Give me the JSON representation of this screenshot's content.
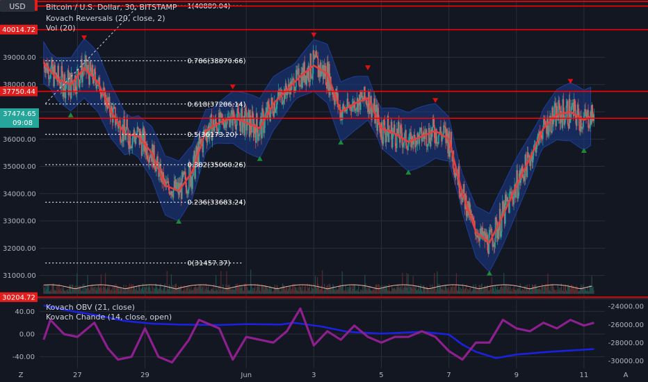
{
  "header": {
    "currency_button": "USD",
    "symbol_title": "Bitcoin / U.S. Dollar, 30, BITSTAMP",
    "indicator_reversals": "Kovach Reversals (20, close, 2)",
    "indicator_vol": "Vol (20)",
    "indicator_obv": "Kovach OBV (21, close)",
    "indicator_chande": "Kovach Chande (14, close, open)"
  },
  "footer": {
    "left_icon_label": "Z",
    "right_icon_label": "A"
  },
  "colors": {
    "background": "#131722",
    "grid": "#2a2e39",
    "candle_up": "#26a69a",
    "candle_down": "#ef5350",
    "basis": "#e0403f",
    "band_fill": "#1b3a8c",
    "level_line": "#ff0000",
    "obv": "#1a22e0",
    "chande": "#8e1f8e",
    "arrow_down": "#e01010",
    "arrow_up": "#1b8a3a",
    "price_badge": "#26a69a"
  },
  "chart_data": [
    {
      "type": "candlestick",
      "title": "Bitcoin / U.S. Dollar, 30, BITSTAMP",
      "x_tick_labels": [
        "27",
        "29",
        "Jun",
        "3",
        "5",
        "7",
        "9",
        "11"
      ],
      "y_tick_labels": [
        "39000.00",
        "38000.00",
        "36000.00",
        "35000.00",
        "34000.00",
        "33000.00",
        "32000.00",
        "31000.00"
      ],
      "ylim": [
        30200,
        41100
      ],
      "grid": true,
      "current_price": "37474.65",
      "countdown": "09:08",
      "horizontal_levels": [
        "41048.05",
        "40879.97",
        "40014.72",
        "37750.44",
        "36764.44",
        "30204.72"
      ],
      "fibonacci_levels": [
        {
          "label": "1(40889.04)",
          "value": 40889.04
        },
        {
          "label": "0.786(38870.66)",
          "value": 38870.66
        },
        {
          "label": "0.618(37286.14)",
          "value": 37286.14
        },
        {
          "label": "0.5(36173.20)",
          "value": 36173.2
        },
        {
          "label": "0.382(35060.26)",
          "value": 35060.26
        },
        {
          "label": "0.236(33683.24)",
          "value": 33683.24
        },
        {
          "label": "0(31457.37)",
          "value": 31457.37
        }
      ],
      "basis_trend": [
        {
          "day": 26.0,
          "price": 38800
        },
        {
          "day": 26.4,
          "price": 38200
        },
        {
          "day": 26.8,
          "price": 38000
        },
        {
          "day": 27.2,
          "price": 38600
        },
        {
          "day": 27.6,
          "price": 38100
        },
        {
          "day": 28.0,
          "price": 37000
        },
        {
          "day": 28.4,
          "price": 36200
        },
        {
          "day": 28.8,
          "price": 36100
        },
        {
          "day": 29.2,
          "price": 35500
        },
        {
          "day": 29.6,
          "price": 34300
        },
        {
          "day": 30.0,
          "price": 34100
        },
        {
          "day": 30.4,
          "price": 34800
        },
        {
          "day": 30.8,
          "price": 36300
        },
        {
          "day": 31.2,
          "price": 36600
        },
        {
          "day": 31.6,
          "price": 36800
        },
        {
          "day": 32.0,
          "price": 36600
        },
        {
          "day": 32.4,
          "price": 36400
        },
        {
          "day": 32.8,
          "price": 37300
        },
        {
          "day": 33.2,
          "price": 37800
        },
        {
          "day": 33.6,
          "price": 38300
        },
        {
          "day": 34.0,
          "price": 38700
        },
        {
          "day": 34.4,
          "price": 38400
        },
        {
          "day": 34.8,
          "price": 37000
        },
        {
          "day": 35.2,
          "price": 37300
        },
        {
          "day": 35.6,
          "price": 37500
        },
        {
          "day": 36.0,
          "price": 36400
        },
        {
          "day": 36.4,
          "price": 36200
        },
        {
          "day": 36.8,
          "price": 35900
        },
        {
          "day": 37.2,
          "price": 36100
        },
        {
          "day": 37.6,
          "price": 36300
        },
        {
          "day": 38.0,
          "price": 36000
        },
        {
          "day": 38.4,
          "price": 34000
        },
        {
          "day": 38.8,
          "price": 32600
        },
        {
          "day": 39.2,
          "price": 32200
        },
        {
          "day": 39.6,
          "price": 33200
        },
        {
          "day": 40.0,
          "price": 34300
        },
        {
          "day": 40.4,
          "price": 35300
        },
        {
          "day": 40.8,
          "price": 36400
        },
        {
          "day": 41.2,
          "price": 36900
        },
        {
          "day": 41.6,
          "price": 37000
        },
        {
          "day": 42.0,
          "price": 36700
        },
        {
          "day": 42.3,
          "price": 36900
        }
      ]
    },
    {
      "type": "line",
      "series": [
        {
          "name": "Kovach OBV (21, close)",
          "axis": "right",
          "values": [
            {
              "day": 26.0,
              "value": -23900
            },
            {
              "day": 26.8,
              "value": -24500
            },
            {
              "day": 27.6,
              "value": -25000
            },
            {
              "day": 28.4,
              "value": -25600
            },
            {
              "day": 29.2,
              "value": -25900
            },
            {
              "day": 30.0,
              "value": -26000
            },
            {
              "day": 31.2,
              "value": -26050
            },
            {
              "day": 32.0,
              "value": -25950
            },
            {
              "day": 33.0,
              "value": -26000
            },
            {
              "day": 33.4,
              "value": -25800
            },
            {
              "day": 34.2,
              "value": -26200
            },
            {
              "day": 35.0,
              "value": -26800
            },
            {
              "day": 36.0,
              "value": -27000
            },
            {
              "day": 37.2,
              "value": -26800
            },
            {
              "day": 38.0,
              "value": -27100
            },
            {
              "day": 38.4,
              "value": -28200
            },
            {
              "day": 38.8,
              "value": -29000
            },
            {
              "day": 39.4,
              "value": -29700
            },
            {
              "day": 40.0,
              "value": -29300
            },
            {
              "day": 41.0,
              "value": -29000
            },
            {
              "day": 42.3,
              "value": -28700
            }
          ]
        },
        {
          "name": "Kovach Chande (14, close, open)",
          "axis": "left",
          "values": [
            {
              "day": 26.0,
              "value": -10
            },
            {
              "day": 26.2,
              "value": 25
            },
            {
              "day": 26.6,
              "value": 0
            },
            {
              "day": 27.0,
              "value": -5
            },
            {
              "day": 27.5,
              "value": 20
            },
            {
              "day": 27.9,
              "value": -25
            },
            {
              "day": 28.2,
              "value": -45
            },
            {
              "day": 28.6,
              "value": -40
            },
            {
              "day": 29.0,
              "value": 10
            },
            {
              "day": 29.4,
              "value": -40
            },
            {
              "day": 29.8,
              "value": -50
            },
            {
              "day": 30.3,
              "value": -10
            },
            {
              "day": 30.6,
              "value": 25
            },
            {
              "day": 31.2,
              "value": 10
            },
            {
              "day": 31.6,
              "value": -45
            },
            {
              "day": 32.0,
              "value": -5
            },
            {
              "day": 32.4,
              "value": -10
            },
            {
              "day": 32.8,
              "value": -15
            },
            {
              "day": 33.2,
              "value": 5
            },
            {
              "day": 33.6,
              "value": 45
            },
            {
              "day": 34.0,
              "value": -20
            },
            {
              "day": 34.4,
              "value": 5
            },
            {
              "day": 34.8,
              "value": -10
            },
            {
              "day": 35.2,
              "value": 15
            },
            {
              "day": 35.6,
              "value": -5
            },
            {
              "day": 36.0,
              "value": -15
            },
            {
              "day": 36.4,
              "value": -5
            },
            {
              "day": 36.8,
              "value": -5
            },
            {
              "day": 37.2,
              "value": 5
            },
            {
              "day": 37.6,
              "value": -5
            },
            {
              "day": 38.0,
              "value": -30
            },
            {
              "day": 38.4,
              "value": -45
            },
            {
              "day": 38.8,
              "value": -15
            },
            {
              "day": 39.2,
              "value": -15
            },
            {
              "day": 39.6,
              "value": 25
            },
            {
              "day": 40.0,
              "value": 10
            },
            {
              "day": 40.4,
              "value": 5
            },
            {
              "day": 40.8,
              "value": 20
            },
            {
              "day": 41.2,
              "value": 10
            },
            {
              "day": 41.6,
              "value": 25
            },
            {
              "day": 42.0,
              "value": 15
            },
            {
              "day": 42.3,
              "value": 20
            }
          ]
        }
      ],
      "y_tick_labels_left": [
        "40.00",
        "0.00",
        "-40.00"
      ],
      "y_tick_labels_right": [
        "-24000.00",
        "-26000.00",
        "-28000.00",
        "-30000.00"
      ],
      "ylim_left": [
        -60,
        60
      ],
      "ylim_right": [
        -30800,
        -23300
      ]
    }
  ]
}
